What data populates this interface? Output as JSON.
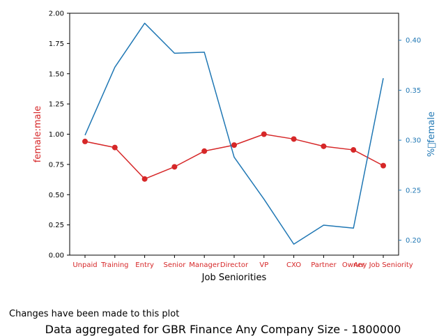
{
  "chart_data": {
    "type": "line",
    "xlabel": "Job Seniorities",
    "categories": [
      "Unpaid",
      "Training",
      "Entry",
      "Senior",
      "Manager",
      "Director",
      "VP",
      "CXO",
      "Partner",
      "Owner",
      "Any Job Seniority"
    ],
    "series": [
      {
        "axis": "left",
        "color": "#d62728",
        "markers": true,
        "values": [
          0.94,
          0.89,
          0.63,
          0.73,
          0.86,
          0.91,
          1.0,
          0.96,
          0.9,
          0.87,
          0.74
        ]
      },
      {
        "axis": "right",
        "color": "#1f77b4",
        "markers": false,
        "values": [
          0.305,
          0.373,
          0.417,
          0.387,
          0.388,
          0.283,
          0.241,
          0.196,
          0.215,
          0.212,
          0.362
        ]
      }
    ],
    "left_axis": {
      "label": "female:male",
      "color": "#d62728",
      "ylim": [
        0,
        2
      ],
      "ticks": [
        0,
        0.25,
        0.5,
        0.75,
        1.0,
        1.25,
        1.5,
        1.75,
        2.0
      ],
      "tick_labels": [
        "0.00",
        "0.25",
        "0.50",
        "0.75",
        "1.00",
        "1.25",
        "1.50",
        "1.75",
        "2.00"
      ]
    },
    "right_axis": {
      "label": "%\u0000female",
      "color": "#1f77b4",
      "ylim": [
        0.185,
        0.427
      ],
      "ticks": [
        0.2,
        0.25,
        0.3,
        0.35,
        0.4
      ],
      "tick_labels": [
        "0.20",
        "0.25",
        "0.30",
        "0.35",
        "0.40"
      ]
    },
    "grid": false,
    "legend": "none"
  },
  "notes": {
    "changes": "Changes have been made to this plot",
    "aggregation": "Data aggregated for GBR Finance Any Company Size - 1800000"
  }
}
